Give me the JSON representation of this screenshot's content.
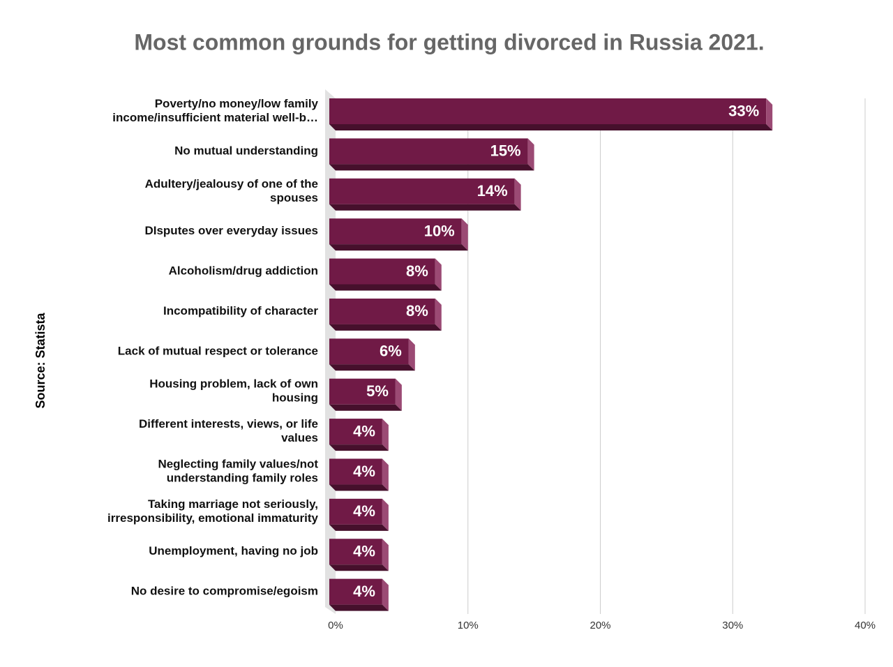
{
  "chart_data": {
    "type": "bar",
    "orientation": "horizontal",
    "title": "Most common grounds for getting divorced in Russia 2021.",
    "source": "Source: Statista",
    "categories": [
      "Poverty/no money/low family\nincome/insufficient material well-b…",
      "No mutual understanding",
      "Adultery/jealousy of one of the\nspouses",
      "DIsputes over everyday issues",
      "Alcoholism/drug addiction",
      "Incompatibility of character",
      "Lack of mutual respect or tolerance",
      "Housing problem, lack of own\nhousing",
      "Different interests, views, or life\nvalues",
      "Neglecting family values/not\nunderstanding family roles",
      "Taking marriage not seriously,\nirresponsibility, emotional immaturity",
      "Unemployment, having no job",
      "No desire to compromise/egoism"
    ],
    "values": [
      33,
      15,
      14,
      10,
      8,
      8,
      6,
      5,
      4,
      4,
      4,
      4,
      4
    ],
    "value_labels": [
      "33%",
      "15%",
      "14%",
      "10%",
      "8%",
      "8%",
      "6%",
      "5%",
      "4%",
      "4%",
      "4%",
      "4%",
      "4%"
    ],
    "color": "#701a46",
    "xlim": [
      0,
      40
    ],
    "xticks": [
      {
        "value": 0,
        "label": "0%"
      },
      {
        "value": 10,
        "label": "10%"
      },
      {
        "value": 20,
        "label": "20%"
      },
      {
        "value": 30,
        "label": "30%"
      },
      {
        "value": 40,
        "label": "40%"
      }
    ],
    "grid": true
  }
}
